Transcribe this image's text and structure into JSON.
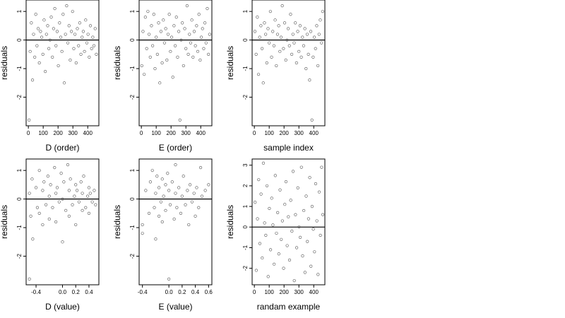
{
  "chart_data": [
    {
      "type": "scatter",
      "xlabel": "D (order)",
      "ylabel": "residuals",
      "xlim": [
        -15,
        475
      ],
      "ylim": [
        -3.0,
        1.4
      ],
      "xticks": [
        0,
        100,
        200,
        300,
        400
      ],
      "xtick_labels": [
        "0",
        "100",
        "200",
        "300",
        "400"
      ],
      "yticks": [
        -2,
        -1,
        0,
        1
      ],
      "ytick_labels": [
        "-2",
        "-1",
        "0",
        "1"
      ],
      "reference_line_y": 0,
      "x": [
        5,
        12,
        20,
        28,
        35,
        43,
        50,
        58,
        66,
        74,
        82,
        90,
        98,
        106,
        114,
        122,
        130,
        138,
        146,
        154,
        162,
        170,
        178,
        186,
        194,
        202,
        210,
        218,
        226,
        234,
        242,
        250,
        258,
        266,
        274,
        282,
        290,
        298,
        306,
        314,
        322,
        330,
        338,
        346,
        354,
        362,
        370,
        378,
        386,
        394,
        402,
        410,
        418,
        426,
        434,
        442,
        450,
        458
      ],
      "y": [
        -2.8,
        -0.4,
        0.6,
        -1.4,
        0.2,
        -0.6,
        0.9,
        -0.2,
        0.4,
        -0.8,
        0.3,
        0.1,
        -0.5,
        0.7,
        -1.1,
        0.2,
        0.5,
        -0.3,
        0.0,
        0.8,
        -0.6,
        0.4,
        1.1,
        -0.2,
        0.3,
        -0.9,
        0.6,
        0.1,
        -0.4,
        0.9,
        -1.5,
        0.2,
        1.2,
        -0.1,
        0.5,
        -0.7,
        0.3,
        1.0,
        -0.3,
        0.2,
        -0.8,
        0.4,
        -0.2,
        0.6,
        -0.5,
        0.1,
        0.3,
        -0.4,
        0.7,
        -0.1,
        0.2,
        -0.6,
        0.5,
        -0.3,
        0.1,
        -0.2,
        0.4,
        -0.5
      ]
    },
    {
      "type": "scatter",
      "xlabel": "E (order)",
      "ylabel": "residuals",
      "xlim": [
        -15,
        475
      ],
      "ylim": [
        -3.0,
        1.4
      ],
      "xticks": [
        0,
        100,
        200,
        300,
        400
      ],
      "xtick_labels": [
        "0",
        "100",
        "200",
        "300",
        "400"
      ],
      "yticks": [
        -2,
        -1,
        0,
        1
      ],
      "ytick_labels": [
        "-2",
        "-1",
        "0",
        "1"
      ],
      "reference_line_y": 0,
      "x": [
        3,
        11,
        19,
        27,
        36,
        44,
        52,
        60,
        68,
        76,
        84,
        92,
        100,
        108,
        116,
        124,
        132,
        140,
        148,
        156,
        164,
        172,
        180,
        188,
        196,
        204,
        212,
        220,
        228,
        236,
        244,
        252,
        260,
        268,
        276,
        284,
        292,
        300,
        308,
        316,
        324,
        332,
        340,
        348,
        356,
        364,
        372,
        380,
        388,
        396,
        404,
        412,
        420,
        428,
        436,
        444,
        452,
        460
      ],
      "y": [
        -0.9,
        0.3,
        -1.2,
        0.8,
        -0.3,
        1.0,
        0.2,
        -0.6,
        0.5,
        -0.2,
        0.9,
        -1.0,
        0.1,
        -0.5,
        0.6,
        -1.5,
        0.3,
        -0.8,
        0.7,
        -0.1,
        0.4,
        -0.7,
        0.2,
        0.9,
        -0.4,
        0.1,
        -1.3,
        0.5,
        -0.2,
        0.8,
        -0.6,
        0.3,
        -2.8,
        0.0,
        0.6,
        -0.9,
        0.4,
        -0.3,
        1.2,
        -0.5,
        0.2,
        -0.1,
        0.7,
        -0.6,
        0.3,
        -0.2,
        0.5,
        -0.4,
        0.9,
        -0.7,
        0.1,
        0.4,
        -0.3,
        0.6,
        -0.1,
        1.1,
        -0.5,
        0.2
      ]
    },
    {
      "type": "scatter",
      "xlabel": "sample index",
      "ylabel": "residuals",
      "xlim": [
        -15,
        475
      ],
      "ylim": [
        -3.0,
        1.4
      ],
      "xticks": [
        0,
        100,
        200,
        300,
        400
      ],
      "xtick_labels": [
        "0",
        "100",
        "200",
        "300",
        "400"
      ],
      "yticks": [
        -2,
        -1,
        0,
        1
      ],
      "ytick_labels": [
        "-2",
        "-1",
        "0",
        "1"
      ],
      "reference_line_y": 0,
      "x": [
        4,
        12,
        20,
        28,
        36,
        44,
        52,
        60,
        68,
        76,
        84,
        92,
        100,
        108,
        116,
        124,
        132,
        140,
        148,
        156,
        164,
        172,
        180,
        188,
        196,
        204,
        212,
        220,
        228,
        236,
        244,
        252,
        260,
        268,
        276,
        284,
        292,
        300,
        308,
        316,
        324,
        332,
        340,
        348,
        356,
        364,
        372,
        380,
        388,
        396,
        404,
        412,
        420,
        428,
        436,
        444,
        452,
        460
      ],
      "y": [
        0.3,
        -0.5,
        0.8,
        -1.2,
        0.1,
        0.5,
        -0.3,
        -1.5,
        0.6,
        0.2,
        -0.8,
        0.4,
        -0.1,
        1.0,
        -0.6,
        0.3,
        -0.2,
        0.7,
        -0.9,
        0.2,
        0.5,
        -0.4,
        0.1,
        1.2,
        -0.3,
        0.6,
        -0.7,
        0.0,
        0.4,
        -0.2,
        0.9,
        -0.5,
        0.2,
        -0.1,
        0.6,
        -0.8,
        0.3,
        -0.4,
        0.5,
        -0.6,
        0.1,
        -0.2,
        0.4,
        -1.0,
        0.2,
        -0.5,
        -1.4,
        0.3,
        -2.8,
        -0.6,
        0.1,
        -0.3,
        0.5,
        -0.9,
        0.2,
        0.7,
        -0.1,
        1.0
      ]
    },
    {
      "type": "scatter",
      "xlabel": "D (value)",
      "ylabel": "residuals",
      "xlim": [
        -0.55,
        0.55
      ],
      "ylim": [
        -3.0,
        1.4
      ],
      "xticks": [
        -0.4,
        0.0,
        0.2,
        0.4
      ],
      "xtick_labels": [
        "-0.4",
        "0.0",
        "0.2",
        "0.4"
      ],
      "yticks": [
        -2,
        -1,
        0,
        1
      ],
      "ytick_labels": [
        "-2",
        "-1",
        "0",
        "1"
      ],
      "reference_line_y": 0,
      "x": [
        -0.5,
        -0.5,
        -0.48,
        -0.46,
        -0.45,
        -0.4,
        -0.38,
        -0.35,
        -0.35,
        -0.3,
        -0.3,
        -0.28,
        -0.25,
        -0.22,
        -0.2,
        -0.2,
        -0.18,
        -0.15,
        -0.12,
        -0.1,
        -0.1,
        -0.08,
        -0.05,
        -0.02,
        0.0,
        0.0,
        0.02,
        0.05,
        0.08,
        0.1,
        0.1,
        0.12,
        0.15,
        0.18,
        0.2,
        0.2,
        0.22,
        0.25,
        0.28,
        0.3,
        0.3,
        0.32,
        0.35,
        0.38,
        0.4,
        0.4,
        0.42,
        0.45,
        0.48,
        0.5
      ],
      "y": [
        -2.8,
        0.2,
        -0.6,
        0.7,
        -1.4,
        0.4,
        -0.3,
        1.0,
        -0.5,
        0.3,
        -0.9,
        0.6,
        -0.2,
        0.8,
        0.1,
        -0.7,
        0.5,
        -0.3,
        1.1,
        0.2,
        -0.8,
        0.4,
        -0.1,
        0.9,
        0.0,
        -1.5,
        0.6,
        -0.4,
        1.2,
        0.3,
        -0.6,
        0.7,
        -0.2,
        0.1,
        0.5,
        -0.9,
        0.3,
        -0.1,
        0.6,
        -0.4,
        0.2,
        0.8,
        -0.3,
        0.1,
        0.4,
        -0.5,
        0.2,
        -0.1,
        0.3,
        -0.2
      ]
    },
    {
      "type": "scatter",
      "xlabel": "E (value)",
      "ylabel": "residuals",
      "xlim": [
        -0.45,
        0.65
      ],
      "ylim": [
        -3.0,
        1.4
      ],
      "xticks": [
        -0.4,
        0.0,
        0.2,
        0.4,
        0.6
      ],
      "xtick_labels": [
        "-0.4",
        "0.0",
        "0.2",
        "0.4",
        "0.6"
      ],
      "yticks": [
        -2,
        -1,
        0,
        1
      ],
      "ytick_labels": [
        "-2",
        "-1",
        "0",
        "1"
      ],
      "reference_line_y": 0,
      "x": [
        -0.4,
        -0.4,
        -0.35,
        -0.3,
        -0.28,
        -0.25,
        -0.22,
        -0.2,
        -0.2,
        -0.18,
        -0.15,
        -0.15,
        -0.12,
        -0.1,
        -0.1,
        -0.08,
        -0.05,
        -0.05,
        -0.02,
        0.0,
        0.0,
        0.02,
        0.05,
        0.08,
        0.1,
        0.1,
        0.12,
        0.15,
        0.18,
        0.2,
        0.22,
        0.25,
        0.28,
        0.3,
        0.32,
        0.35,
        0.38,
        0.4,
        0.42,
        0.45,
        0.48,
        0.5,
        0.55,
        0.6
      ],
      "y": [
        -1.2,
        -0.9,
        0.3,
        -0.5,
        0.6,
        1.0,
        -0.3,
        0.2,
        -1.4,
        0.8,
        -0.6,
        0.4,
        -0.1,
        0.7,
        -0.8,
        0.1,
        0.5,
        -0.4,
        0.9,
        -2.8,
        0.3,
        -0.2,
        0.6,
        -0.7,
        0.2,
        1.2,
        -0.3,
        0.4,
        -0.5,
        0.1,
        0.8,
        -0.2,
        0.3,
        -0.9,
        0.5,
        -0.1,
        0.2,
        -0.6,
        0.4,
        -0.3,
        1.1,
        0.1,
        0.3,
        0.5
      ]
    },
    {
      "type": "scatter",
      "xlabel": "randam example",
      "ylabel": "residuals",
      "xlim": [
        -15,
        475
      ],
      "ylim": [
        -2.8,
        3.3
      ],
      "xticks": [
        0,
        100,
        200,
        300,
        400
      ],
      "xtick_labels": [
        "0",
        "100",
        "200",
        "300",
        "400"
      ],
      "yticks": [
        -2,
        -1,
        0,
        1,
        2,
        3
      ],
      "ytick_labels": [
        "-2",
        "-1",
        "0",
        "1",
        "2",
        "3"
      ],
      "reference_line_y": 0,
      "x": [
        5,
        13,
        21,
        29,
        37,
        45,
        53,
        61,
        69,
        77,
        85,
        93,
        101,
        109,
        117,
        125,
        133,
        141,
        149,
        157,
        165,
        173,
        181,
        189,
        197,
        205,
        213,
        221,
        229,
        237,
        245,
        253,
        261,
        269,
        277,
        285,
        293,
        301,
        309,
        317,
        325,
        333,
        341,
        349,
        357,
        365,
        373,
        381,
        389,
        397,
        405,
        413,
        421,
        429,
        437,
        445,
        453,
        461
      ],
      "y": [
        1.2,
        -2.1,
        0.4,
        2.3,
        -0.8,
        1.6,
        -1.5,
        3.1,
        0.2,
        -0.4,
        2.0,
        -2.4,
        0.9,
        -1.1,
        1.4,
        0.1,
        -1.8,
        2.5,
        -0.3,
        0.7,
        -1.3,
        1.8,
        -0.6,
        0.3,
        -2.0,
        1.1,
        2.2,
        -0.9,
        0.5,
        -1.6,
        1.3,
        -0.2,
        2.7,
        -2.6,
        0.6,
        -1.0,
        1.9,
        0.0,
        -0.5,
        2.9,
        -1.4,
        0.8,
        -2.2,
        1.5,
        -0.7,
        0.4,
        2.4,
        -1.9,
        1.0,
        -0.1,
        -1.2,
        2.1,
        0.3,
        -2.3,
        1.7,
        -0.4,
        2.9,
        0.6
      ]
    }
  ]
}
